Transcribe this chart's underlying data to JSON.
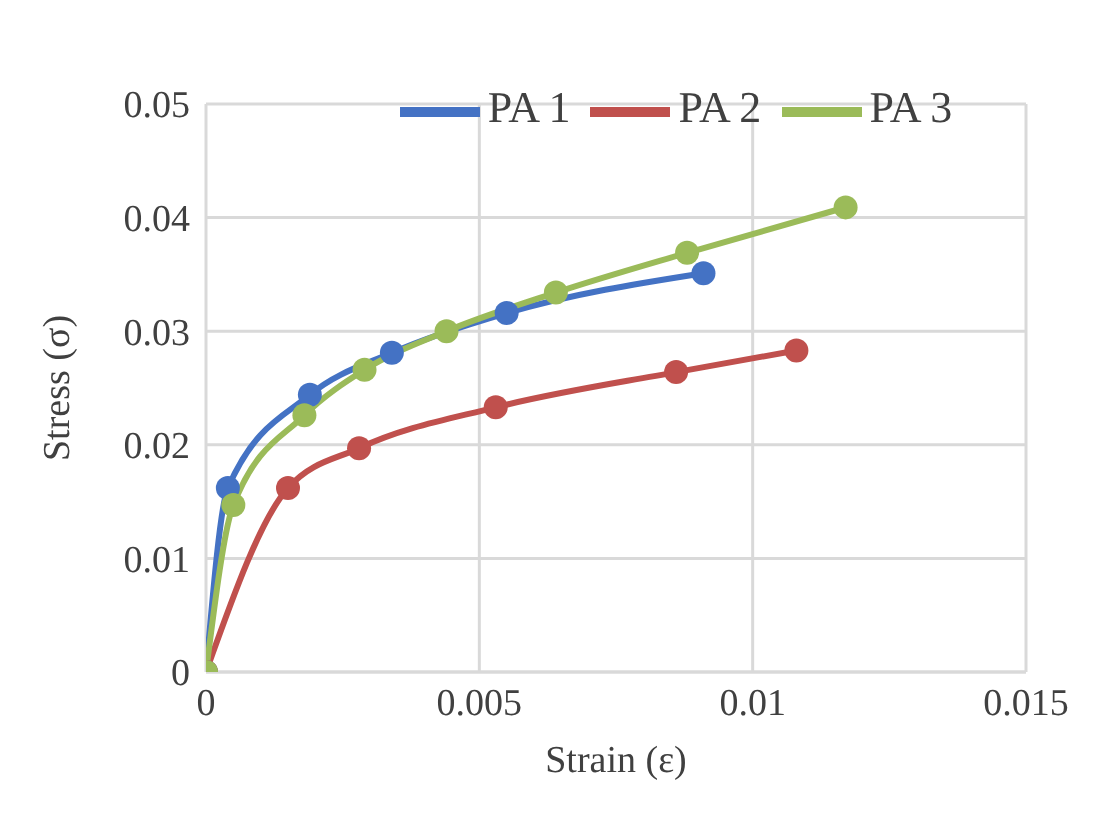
{
  "chart_data": {
    "type": "line",
    "xlabel": "Strain (ε)",
    "ylabel": "Stress (σ)",
    "xlim": [
      0,
      0.015
    ],
    "xticks": [
      0,
      0.005,
      0.01,
      0.015
    ],
    "ylim": [
      0,
      0.05
    ],
    "yticks": [
      0,
      0.01,
      0.02,
      0.03,
      0.04,
      0.05
    ],
    "grid": true,
    "legend": "top",
    "marker": "circle",
    "line_style": "solid",
    "series": [
      {
        "name": "PA 1",
        "color": "#4472c4",
        "x": [
          0,
          0.0004,
          0.0019,
          0.0034,
          0.0055,
          0.0091
        ],
        "values": [
          0,
          0.0162,
          0.0244,
          0.0281,
          0.0316,
          0.0351
        ]
      },
      {
        "name": "PA 2",
        "color": "#c0504d",
        "x": [
          0,
          0.0015,
          0.0028,
          0.0053,
          0.0086,
          0.0108
        ],
        "values": [
          0,
          0.0162,
          0.0197,
          0.0233,
          0.0264,
          0.0283
        ]
      },
      {
        "name": "PA 3",
        "color": "#9bbb59",
        "x": [
          0,
          0.0005,
          0.0018,
          0.0029,
          0.0044,
          0.0064,
          0.0088,
          0.0117
        ],
        "values": [
          0,
          0.0147,
          0.0226,
          0.0266,
          0.03,
          0.0334,
          0.0369,
          0.0409
        ]
      }
    ]
  }
}
